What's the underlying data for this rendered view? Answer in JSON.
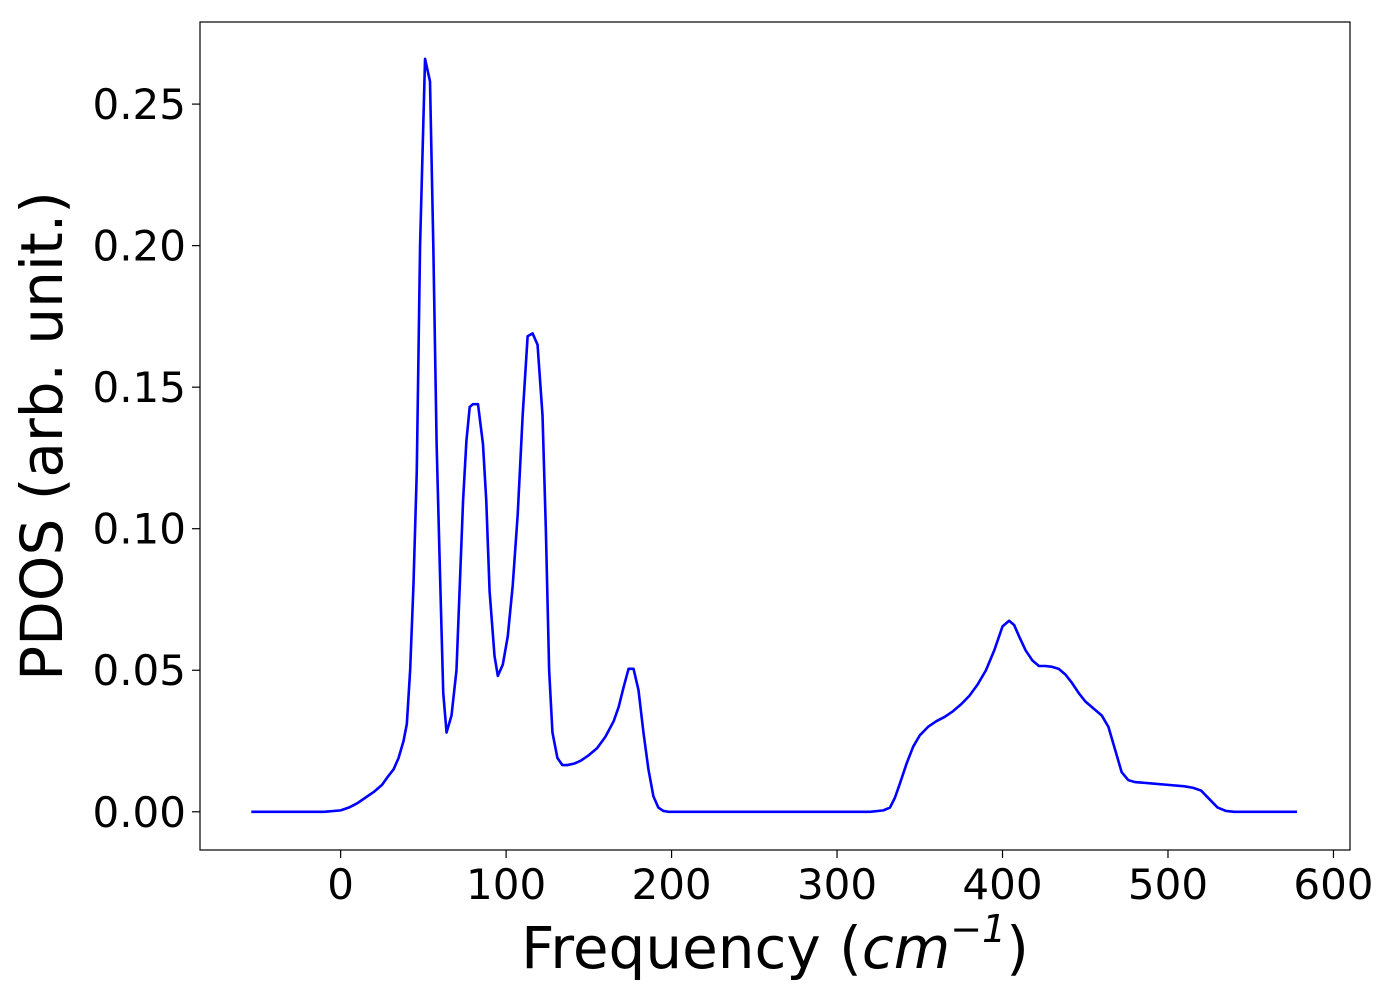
{
  "chart_data": {
    "type": "line",
    "title": "",
    "xlabel": "Frequency (cm",
    "xlabel_sup": "−1",
    "xlabel_prefix": "Frequency (",
    "xlabel_unit": "cm",
    "xlabel_suffix": ")",
    "ylabel": "PDOS (arb. unit.)",
    "xlim": [
      -85,
      610
    ],
    "ylim": [
      -0.0135,
      0.279
    ],
    "grid": false,
    "line_color": "#0000ff",
    "xticks": [
      0,
      100,
      200,
      300,
      400,
      500,
      600
    ],
    "xtick_labels": [
      "0",
      "100",
      "200",
      "300",
      "400",
      "500",
      "600"
    ],
    "yticks": [
      0.0,
      0.05,
      0.1,
      0.15,
      0.2,
      0.25
    ],
    "ytick_labels": [
      "0.00",
      "0.05",
      "0.10",
      "0.15",
      "0.20",
      "0.25"
    ],
    "series": [
      {
        "color": "#0000ff",
        "x": [
          -54,
          -40,
          -20,
          -10,
          0,
          5,
          10,
          15,
          20,
          25,
          28,
          32,
          35,
          38,
          40,
          42,
          44,
          46,
          48,
          51,
          54,
          56,
          58,
          60,
          62,
          64,
          67,
          70,
          72,
          74,
          76,
          78,
          80,
          83,
          86,
          88,
          90,
          93,
          95,
          98,
          101,
          104,
          107,
          110,
          113,
          116,
          119,
          122,
          124,
          126,
          128,
          131,
          134,
          137,
          141,
          145,
          150,
          155,
          160,
          165,
          168,
          171,
          174,
          177,
          180,
          183,
          186,
          189,
          192,
          195,
          198,
          202,
          210,
          250,
          300,
          320,
          328,
          332,
          335,
          338,
          342,
          346,
          350,
          355,
          360,
          365,
          370,
          375,
          380,
          385,
          390,
          395,
          400,
          404,
          407,
          410,
          414,
          418,
          422,
          426,
          430,
          434,
          438,
          442,
          446,
          450,
          455,
          460,
          464,
          468,
          472,
          476,
          480,
          490,
          500,
          510,
          515,
          520,
          525,
          530,
          535,
          540,
          560,
          578
        ],
        "y": [
          0.0,
          0.0,
          0.0,
          0.0,
          0.0005,
          0.0015,
          0.003,
          0.005,
          0.007,
          0.0095,
          0.012,
          0.015,
          0.019,
          0.025,
          0.031,
          0.05,
          0.08,
          0.12,
          0.2,
          0.266,
          0.258,
          0.2,
          0.13,
          0.085,
          0.042,
          0.028,
          0.034,
          0.05,
          0.08,
          0.11,
          0.131,
          0.143,
          0.144,
          0.144,
          0.13,
          0.11,
          0.078,
          0.055,
          0.048,
          0.052,
          0.062,
          0.08,
          0.105,
          0.14,
          0.168,
          0.169,
          0.165,
          0.14,
          0.1,
          0.05,
          0.028,
          0.019,
          0.0165,
          0.0165,
          0.017,
          0.018,
          0.02,
          0.0225,
          0.0265,
          0.032,
          0.037,
          0.044,
          0.0505,
          0.0505,
          0.043,
          0.028,
          0.015,
          0.0055,
          0.0015,
          0.0003,
          0.0,
          0.0,
          0.0,
          0.0,
          0.0,
          0.0,
          0.0005,
          0.0015,
          0.005,
          0.01,
          0.017,
          0.023,
          0.027,
          0.03,
          0.032,
          0.0335,
          0.0355,
          0.038,
          0.041,
          0.045,
          0.05,
          0.057,
          0.0655,
          0.0675,
          0.066,
          0.062,
          0.057,
          0.0535,
          0.0515,
          0.0515,
          0.0512,
          0.0505,
          0.0485,
          0.0455,
          0.042,
          0.039,
          0.0365,
          0.034,
          0.03,
          0.022,
          0.014,
          0.0112,
          0.0105,
          0.01,
          0.0095,
          0.009,
          0.0085,
          0.0075,
          0.0045,
          0.0015,
          0.0003,
          0.0,
          0.0,
          0.0
        ]
      }
    ]
  }
}
